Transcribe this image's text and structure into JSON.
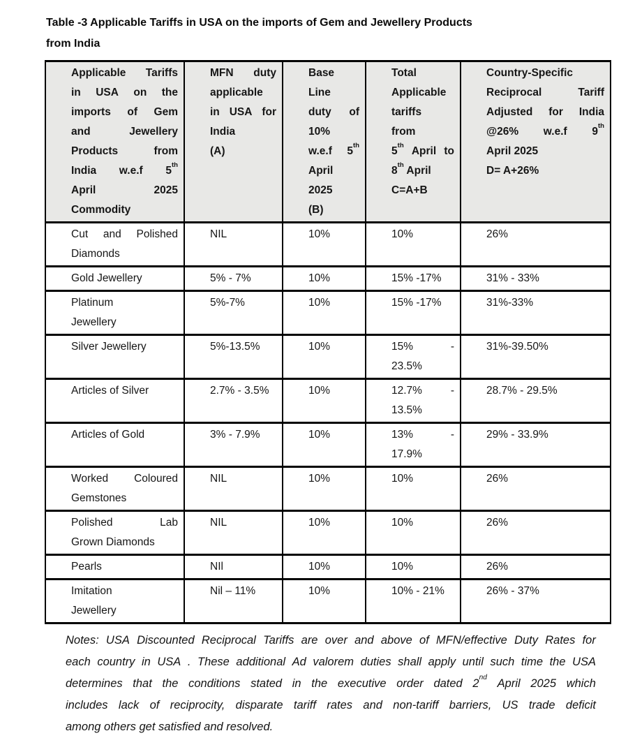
{
  "document": {
    "title": "Table -3 Applicable Tariffs in USA on the imports of Gem and Jewellery Products\nfrom India"
  },
  "table": {
    "header": [
      {
        "name": "commodity",
        "paragraphs": [
          "Applicable Tariffs\nin USA on the\nimports of Gem\nand Jewellery\nProducts from\nIndia w.e.f 5^{th}\nApril 2025\nCommodity"
        ]
      },
      {
        "name": "mfn-duty",
        "paragraphs": [
          "MFN duty\napplicable\nin USA for\nIndia",
          "(A)"
        ]
      },
      {
        "name": "base-line-duty",
        "paragraphs": [
          "Base\nLine\nduty of\n10%\nw.e.f 5^{th}\nApril\n2025",
          "(B)"
        ]
      },
      {
        "name": "total-applicable",
        "paragraphs": [
          "Total\nApplicable\ntariffs\nfrom\n5^{th} April to\n8^{th} April",
          "C=A+B"
        ]
      },
      {
        "name": "reciprocal-tariff",
        "paragraphs": [
          "Country-Specific\nReciprocal Tariff\nAdjusted for India\n@26% w.e.f 9^{th}\nApril 2025",
          "D= A+26%"
        ]
      }
    ],
    "rows": [
      [
        "Cut and Polished\nDiamonds",
        "NIL",
        "10%",
        "10%",
        "26%"
      ],
      [
        "Gold Jewellery",
        "5% - 7%",
        "10%",
        "15% -17%",
        "31% - 33%"
      ],
      [
        "Platinum\nJewellery",
        "5%-7%",
        "10%",
        "15% -17%",
        "31%-33%"
      ],
      [
        "Silver Jewellery",
        "5%-13.5%",
        "10%",
        "15% -\n23.5%",
        "31%-39.50%"
      ],
      [
        "Articles of Silver",
        "2.7% - 3.5%",
        "10%",
        "12.7% -\n13.5%",
        "28.7% - 29.5%"
      ],
      [
        "Articles of Gold",
        "3% - 7.9%",
        "10%",
        "13% -\n17.9%",
        "29% - 33.9%"
      ],
      [
        "Worked Coloured\nGemstones",
        "NIL",
        "10%",
        "10%",
        "26%"
      ],
      [
        "Polished Lab\nGrown Diamonds",
        "NIL",
        "10%",
        "10%",
        "26%"
      ],
      [
        "Pearls",
        "NIl",
        "10%",
        "10%",
        "26%"
      ],
      [
        "Imitation\nJewellery",
        "Nil – 11%",
        "10%",
        "10% - 21%",
        "26% - 37%"
      ]
    ]
  },
  "notes": "Notes: USA Discounted Reciprocal Tariffs are over and above of MFN/effective Duty Rates for\neach country in USA . These additional Ad valorem duties shall apply until such time the USA\ndetermines that the conditions stated in the executive order dated 2^{nd} April 2025 which\nincludes lack of reciprocity, disparate tariff rates and non-tariff barriers, US trade deficit\namong others get satisfied and resolved.",
  "colors": {
    "header_bg": "#e8e8e6",
    "border": "#000000",
    "text": "#161616"
  }
}
